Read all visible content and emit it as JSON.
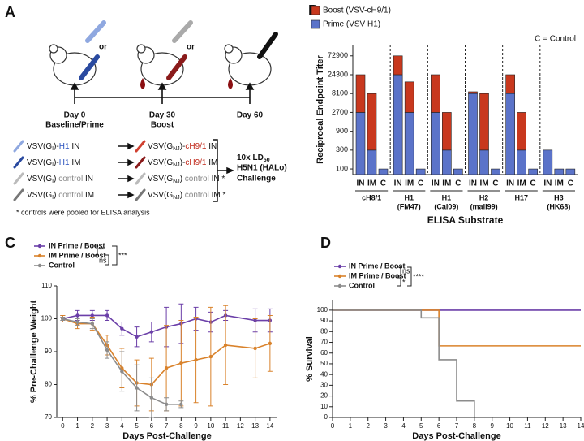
{
  "panel_labels": [
    "A",
    "B",
    "C",
    "D"
  ],
  "diagram": {
    "timepoints": [
      {
        "day": "Day 0",
        "label": "Baseline/Prime"
      },
      {
        "day": "Day 30",
        "label": "Boost"
      },
      {
        "day": "Day 60"
      }
    ],
    "or_labels": [
      "or",
      "or"
    ],
    "prime_groups": [
      {
        "parts": [
          "VSV(G",
          "I",
          ")-",
          "H1",
          " IN"
        ],
        "color": "#2a52be"
      },
      {
        "parts": [
          "VSV(G",
          "I",
          ")-",
          "H1",
          " IM"
        ],
        "color": "#2a52be"
      },
      {
        "parts": [
          "VSV(G",
          "I",
          ") ",
          "control",
          " IN"
        ],
        "color": "#888888"
      },
      {
        "parts": [
          "VSV(G",
          "I",
          ") ",
          "control",
          " IM"
        ],
        "color": "#888888"
      }
    ],
    "boost_groups": [
      {
        "parts": [
          "VSV(G",
          "NJ",
          ")-",
          "cH9/1",
          " IN"
        ],
        "color": "#c0281a"
      },
      {
        "parts": [
          "VSV(G",
          "NJ",
          ")-",
          "cH9/1",
          " IM"
        ],
        "color": "#c0281a"
      },
      {
        "parts": [
          "VSV(G",
          "NJ",
          ") ",
          "control",
          " IN *"
        ],
        "color": "#888888"
      },
      {
        "parts": [
          "VSV(G",
          "NJ",
          ") ",
          "control",
          " IM *"
        ],
        "color": "#888888"
      }
    ],
    "challenge": [
      "10x LD",
      "50",
      "H5N1 (HALo)",
      "Challenge"
    ],
    "footnote": "* controls were pooled for ELISA analysis"
  },
  "chart_data": [
    {
      "type": "stacked_bar",
      "log_scale": true,
      "y_label": "Reciprocal Endpoint Titer",
      "x_label": "ELISA Substrate",
      "note": "C = Control",
      "categories": [
        "IN",
        "IM",
        "C",
        "IN",
        "IM",
        "C",
        "IN",
        "IM",
        "C",
        "IN",
        "IM",
        "C",
        "IN",
        "IM",
        "C",
        "IN",
        "IM",
        "C"
      ],
      "group_labels": [
        [
          "cH8/1"
        ],
        [
          "H1",
          "(FM47)"
        ],
        [
          "H1",
          "(Cal09)"
        ],
        [
          "H2",
          "(mall99)"
        ],
        [
          "H17"
        ],
        [
          "H3",
          "(HK68)"
        ]
      ],
      "series": [
        {
          "name": "Prime (VSV-H1)",
          "color": "#5b73c9",
          "values": [
            2700,
            300,
            100,
            24300,
            2700,
            100,
            2700,
            300,
            100,
            8100,
            300,
            100,
            8100,
            300,
            100,
            300,
            100,
            100
          ]
        },
        {
          "name": "Boost (VSV-cH9/1)",
          "color": "#c8381e",
          "values": [
            21600,
            7800,
            0,
            48600,
            13300,
            0,
            21600,
            2400,
            0,
            900,
            7800,
            0,
            16200,
            2400,
            0,
            0,
            0,
            0
          ]
        }
      ],
      "ylim": [
        72,
        140000
      ],
      "yticks": [
        100,
        300,
        900,
        2700,
        8100,
        24300,
        72900
      ]
    },
    {
      "type": "line",
      "y_label": "% Pre-Challenge Weight",
      "x_label": "Days Post-Challenge",
      "x": [
        0,
        1,
        2,
        3,
        4,
        5,
        6,
        7,
        8,
        9,
        10,
        11,
        13,
        14
      ],
      "xlim": [
        -0.4,
        14.5
      ],
      "xticks": [
        0,
        1,
        2,
        3,
        4,
        5,
        6,
        7,
        8,
        9,
        10,
        11,
        12,
        13,
        14
      ],
      "ylim": [
        70,
        110
      ],
      "yticks": [
        70,
        80,
        90,
        100,
        110
      ],
      "series": [
        {
          "name": "IN Prime / Boost",
          "color": "#6b3fa8",
          "values": [
            100,
            101,
            101,
            101,
            97,
            94.5,
            96,
            97.5,
            98.5,
            100,
            99,
            101,
            99.5,
            99.5
          ],
          "errors": [
            1,
            1.5,
            1.5,
            1.5,
            2,
            3,
            3,
            6,
            6,
            3.5,
            3,
            1.5,
            3.5,
            3.5
          ]
        },
        {
          "name": "IM Prime / Boost",
          "color": "#d9822b",
          "values": [
            100,
            98.5,
            98.5,
            92,
            85,
            80.5,
            80,
            85,
            86.5,
            87.5,
            88.5,
            92,
            91,
            92.5
          ],
          "errors": [
            1,
            1.5,
            2,
            3,
            6,
            7,
            8,
            13,
            13,
            13,
            15,
            12,
            9,
            8.5
          ]
        },
        {
          "name": "Control",
          "color": "#8c8c8c",
          "values": [
            100,
            99,
            98.5,
            90.5,
            84,
            79,
            76,
            74,
            74,
            null,
            null,
            null,
            null,
            null
          ],
          "errors": [
            0.5,
            1,
            1.5,
            2.5,
            6,
            7,
            6,
            2,
            1,
            null,
            null,
            null,
            null,
            null
          ]
        }
      ],
      "annotations": [
        "**",
        "ns",
        "***"
      ]
    },
    {
      "type": "step",
      "y_label": "% Survival",
      "x_label": "Days Post-Challenge",
      "x": [
        0,
        5,
        6,
        7,
        8,
        14
      ],
      "xlim": [
        0,
        14
      ],
      "xticks": [
        0,
        1,
        2,
        3,
        4,
        5,
        6,
        7,
        8,
        9,
        10,
        11,
        12,
        13,
        14
      ],
      "ylim": [
        0,
        109
      ],
      "yticks": [
        0,
        10,
        20,
        30,
        40,
        50,
        60,
        70,
        80,
        90,
        100
      ],
      "series": [
        {
          "name": "IN Prime / Boost",
          "color": "#6b3fa8",
          "values": [
            100,
            100,
            100,
            100,
            100,
            100
          ]
        },
        {
          "name": "IM Prime / Boost",
          "color": "#d9822b",
          "values": [
            100,
            100,
            66.7,
            66.7,
            66.7,
            66.7
          ]
        },
        {
          "name": "Control",
          "color": "#8c8c8c",
          "values": [
            100,
            92.9,
            53.8,
            15.4,
            0,
            null
          ]
        }
      ],
      "annotations": [
        "ns",
        "*",
        "****"
      ]
    }
  ]
}
